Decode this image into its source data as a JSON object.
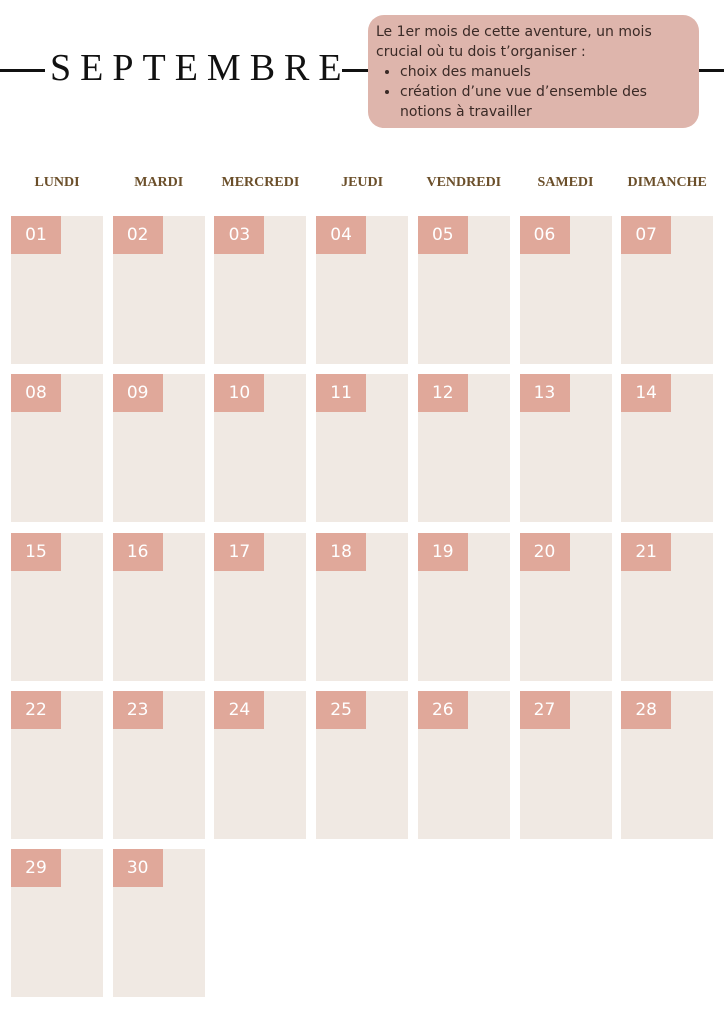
{
  "header": {
    "title": "SEPTEMBRE"
  },
  "note": {
    "text": "Le 1er mois de cette aventure, un mois crucial où tu dois t’organiser :",
    "bullets": [
      "choix des manuels",
      "création d’une vue d’ensemble des notions à travailler"
    ]
  },
  "weekdays": [
    "LUNDI",
    "MARDI",
    "MERCREDI",
    "JEUDI",
    "VENDREDI",
    "SAMEDI",
    "DIMANCHE"
  ],
  "days": [
    "01",
    "02",
    "03",
    "04",
    "05",
    "06",
    "07",
    "08",
    "09",
    "10",
    "11",
    "12",
    "13",
    "14",
    "15",
    "16",
    "17",
    "18",
    "19",
    "20",
    "21",
    "22",
    "23",
    "24",
    "25",
    "26",
    "27",
    "28",
    "29",
    "30"
  ]
}
